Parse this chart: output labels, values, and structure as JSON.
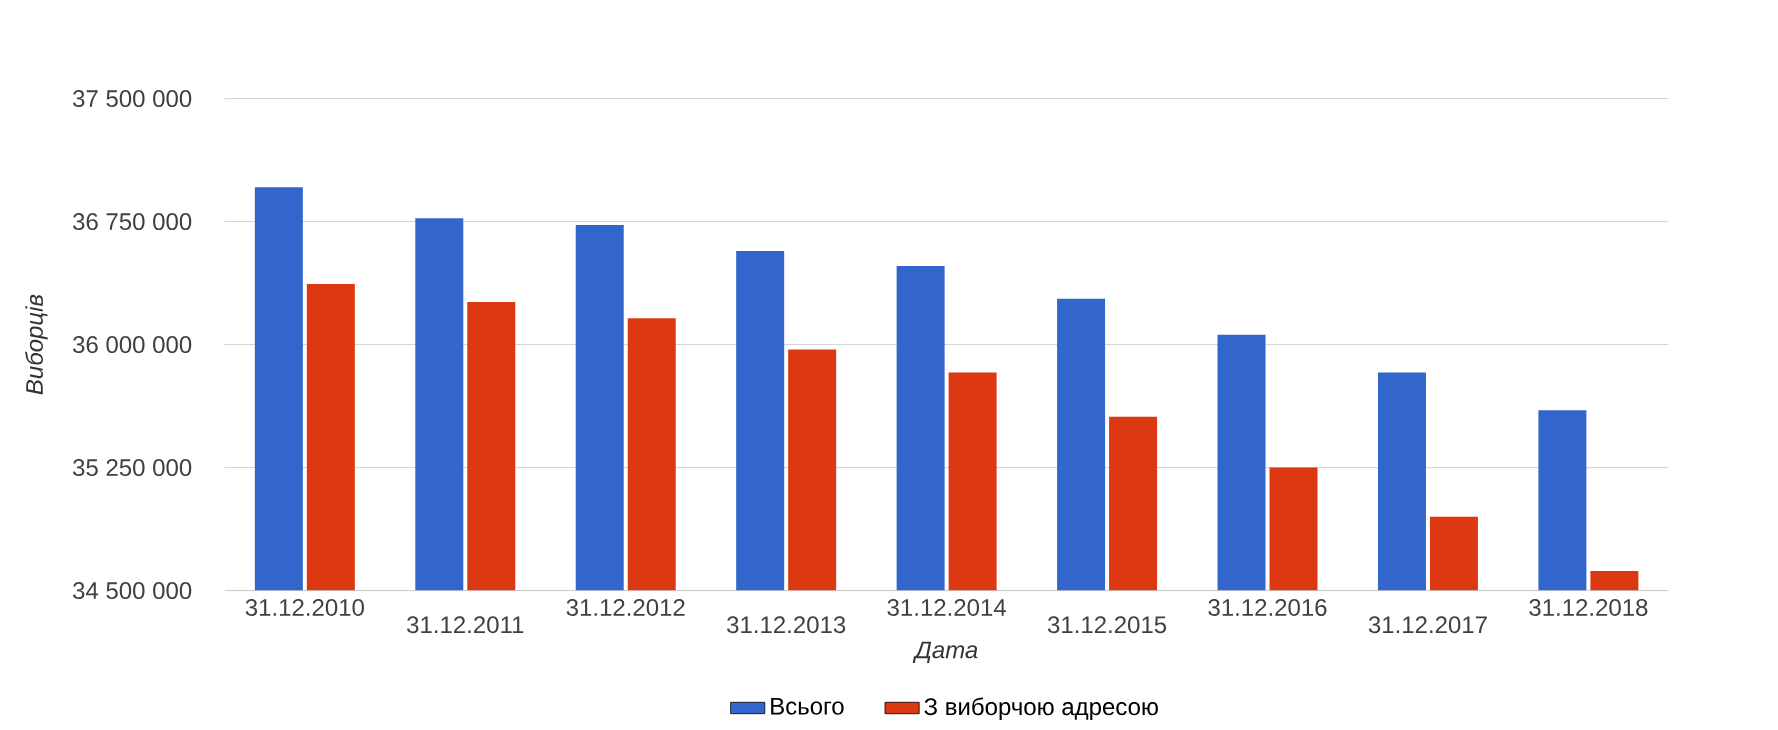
{
  "chart_data": {
    "type": "bar",
    "xlabel": "Дата",
    "ylabel": "Виборців",
    "categories": [
      "31.12.2010",
      "31.12.2011",
      "31.12.2012",
      "31.12.2013",
      "31.12.2014",
      "31.12.2015",
      "31.12.2016",
      "31.12.2017",
      "31.12.2018"
    ],
    "series": [
      {
        "name": "Всього",
        "color": "#3366cc",
        "values": [
          36960000,
          36770000,
          36730000,
          36570000,
          36480000,
          36280000,
          36060000,
          35830000,
          35600000
        ]
      },
      {
        "name": "З виборчою адресою",
        "color": "#dc3912",
        "values": [
          36370000,
          36260000,
          36160000,
          35970000,
          35830000,
          35560000,
          35250000,
          34950000,
          34620000
        ]
      }
    ],
    "ylim": [
      34500000,
      37500000
    ],
    "yticks": [
      {
        "value": 34500000,
        "label": "34 500 000"
      },
      {
        "value": 35250000,
        "label": "35 250 000"
      },
      {
        "value": 36000000,
        "label": "36 000 000"
      },
      {
        "value": 36750000,
        "label": "36 750 000"
      },
      {
        "value": 37500000,
        "label": "37 500 000"
      }
    ],
    "grid": "y",
    "legend": "bottom"
  }
}
